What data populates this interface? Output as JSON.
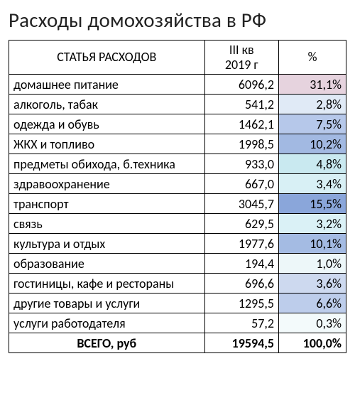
{
  "title": "Расходы домохозяйства в РФ",
  "headers": {
    "category": "СТАТЬЯ РАСХОДОВ",
    "value_line1": "III кв",
    "value_line2": "2019 г",
    "percent": "%"
  },
  "table": {
    "type": "table",
    "col_widths_pct": [
      58,
      22,
      20
    ],
    "font_size_pt": 18,
    "header_font_size_pt": 18,
    "border_color": "#000000",
    "text_color": "#000000",
    "background": "#ffffff"
  },
  "rows": [
    {
      "category": "домашнее питание",
      "value": "6096,2",
      "percent": "31,1%",
      "pct_bg": "#e6d3de"
    },
    {
      "category": "алкоголь, табак",
      "value": "541,2",
      "percent": "2,8%",
      "pct_bg": "#e0eaf6"
    },
    {
      "category": "одежда и обувь",
      "value": "1462,1",
      "percent": "7,5%",
      "pct_bg": "#b6c8ea"
    },
    {
      "category": "ЖКХ и топливо",
      "value": "1998,5",
      "percent": "10,2%",
      "pct_bg": "#a2b9e2"
    },
    {
      "category": "предметы обихода, б.техника",
      "value": "933,0",
      "percent": "4,8%",
      "pct_bg": "#c9e9f0"
    },
    {
      "category": "здравоохранение",
      "value": "667,0",
      "percent": "3,4%",
      "pct_bg": "#d8f0f5"
    },
    {
      "category": "транспорт",
      "value": "3045,7",
      "percent": "15,5%",
      "pct_bg": "#8aa6da"
    },
    {
      "category": "связь",
      "value": "629,5",
      "percent": "3,2%",
      "pct_bg": "#daf1f6"
    },
    {
      "category": "культура и отдых",
      "value": "1977,6",
      "percent": "10,1%",
      "pct_bg": "#a4bbe3"
    },
    {
      "category": "образование",
      "value": "194,4",
      "percent": "1,0%",
      "pct_bg": "#edf7f9"
    },
    {
      "category": "гостиницы, кафе и рестораны",
      "value": "696,6",
      "percent": "3,6%",
      "pct_bg": "#cdd9ef"
    },
    {
      "category": "другие товары и услуги",
      "value": "1295,5",
      "percent": "6,6%",
      "pct_bg": "#bdcdeb"
    },
    {
      "category": "услуги работодателя",
      "value": "57,2",
      "percent": "0,3%",
      "pct_bg": "#f3fafb"
    }
  ],
  "total": {
    "label": "ВСЕГО, руб",
    "value": "19594,5",
    "percent": "100,0%",
    "pct_bg": "#ffffff"
  }
}
